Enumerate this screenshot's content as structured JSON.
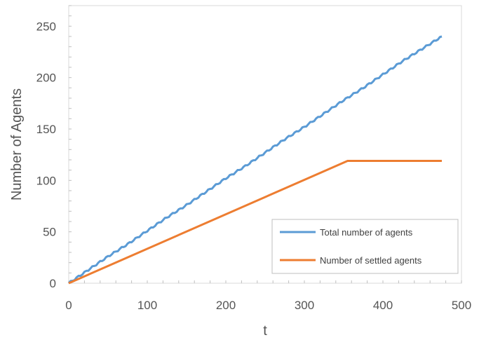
{
  "chart_data": {
    "type": "line",
    "xlabel": "t",
    "ylabel": "Number of Agents",
    "xlim": [
      0,
      500
    ],
    "ylim": [
      0,
      270
    ],
    "x_ticks": [
      0,
      100,
      200,
      300,
      400,
      500
    ],
    "y_ticks": [
      0,
      50,
      100,
      150,
      200,
      250
    ],
    "grid": false,
    "legend_position": "bottom-right",
    "series": [
      {
        "name": "Total number of agents",
        "color": "#5b9bd5",
        "x": [
          0,
          25,
          50,
          75,
          100,
          125,
          150,
          175,
          200,
          225,
          250,
          275,
          300,
          325,
          350,
          375,
          400,
          425,
          450,
          475
        ],
        "y": [
          0,
          13,
          26,
          38,
          51,
          64,
          76,
          89,
          102,
          114,
          127,
          140,
          152,
          165,
          178,
          190,
          203,
          216,
          228,
          240
        ]
      },
      {
        "name": "Number of settled agents",
        "color": "#ed7d31",
        "x": [
          0,
          355,
          475
        ],
        "y": [
          0,
          119,
          119
        ]
      }
    ]
  }
}
